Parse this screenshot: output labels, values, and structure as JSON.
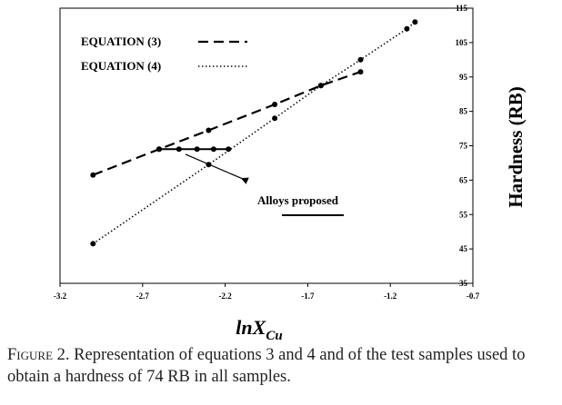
{
  "chart_data": {
    "type": "line",
    "title": "",
    "xlabel": "lnX",
    "xlabel_sub": "Cu",
    "ylabel": "Hardness (RB)",
    "xlim": [
      -3.2,
      -0.7
    ],
    "ylim": [
      35,
      115
    ],
    "x_ticks": [
      -3.2,
      -2.7,
      -2.2,
      -1.7,
      -1.2,
      -0.7
    ],
    "x_tick_labels": [
      "-3.2",
      "-2.7",
      "-2.2",
      "-1.7",
      "-1.2",
      "-0.7"
    ],
    "y_ticks": [
      35,
      45,
      55,
      65,
      75,
      85,
      95,
      105,
      115
    ],
    "y_tick_labels": [
      "35",
      "45",
      "55",
      "65",
      "75",
      "85",
      "95",
      "105",
      "115"
    ],
    "grid": false,
    "legend_position": "top-left",
    "series": [
      {
        "name": "EQUATION (3)",
        "style": "dashed",
        "x": [
          -3.0,
          -2.6,
          -2.3,
          -1.9,
          -1.62,
          -1.38
        ],
        "y": [
          66.5,
          74,
          79.5,
          87,
          92.5,
          96.5
        ]
      },
      {
        "name": "EQUATION (4)",
        "style": "dotted",
        "x": [
          -3.0,
          -2.3,
          -1.9,
          -1.62,
          -1.38,
          -1.1,
          -1.05
        ],
        "y": [
          46.5,
          69.5,
          83,
          92.5,
          100,
          109,
          111
        ]
      },
      {
        "name": "Alloys proposed",
        "style": "solid",
        "x": [
          -2.6,
          -2.48,
          -2.37,
          -2.27,
          -2.18
        ],
        "y": [
          74,
          74,
          74,
          74,
          74
        ]
      }
    ],
    "annotations": [
      {
        "text": "Alloys proposed",
        "arrow_from": [
          -2.1,
          65.5
        ],
        "arrow_to": [
          -2.44,
          72.5
        ]
      }
    ]
  },
  "caption": {
    "figure_label": "Figure 2",
    "text": ". Representation of equations 3 and 4 and of the test samples used to obtain a hardness of 74 RB in all samples."
  }
}
